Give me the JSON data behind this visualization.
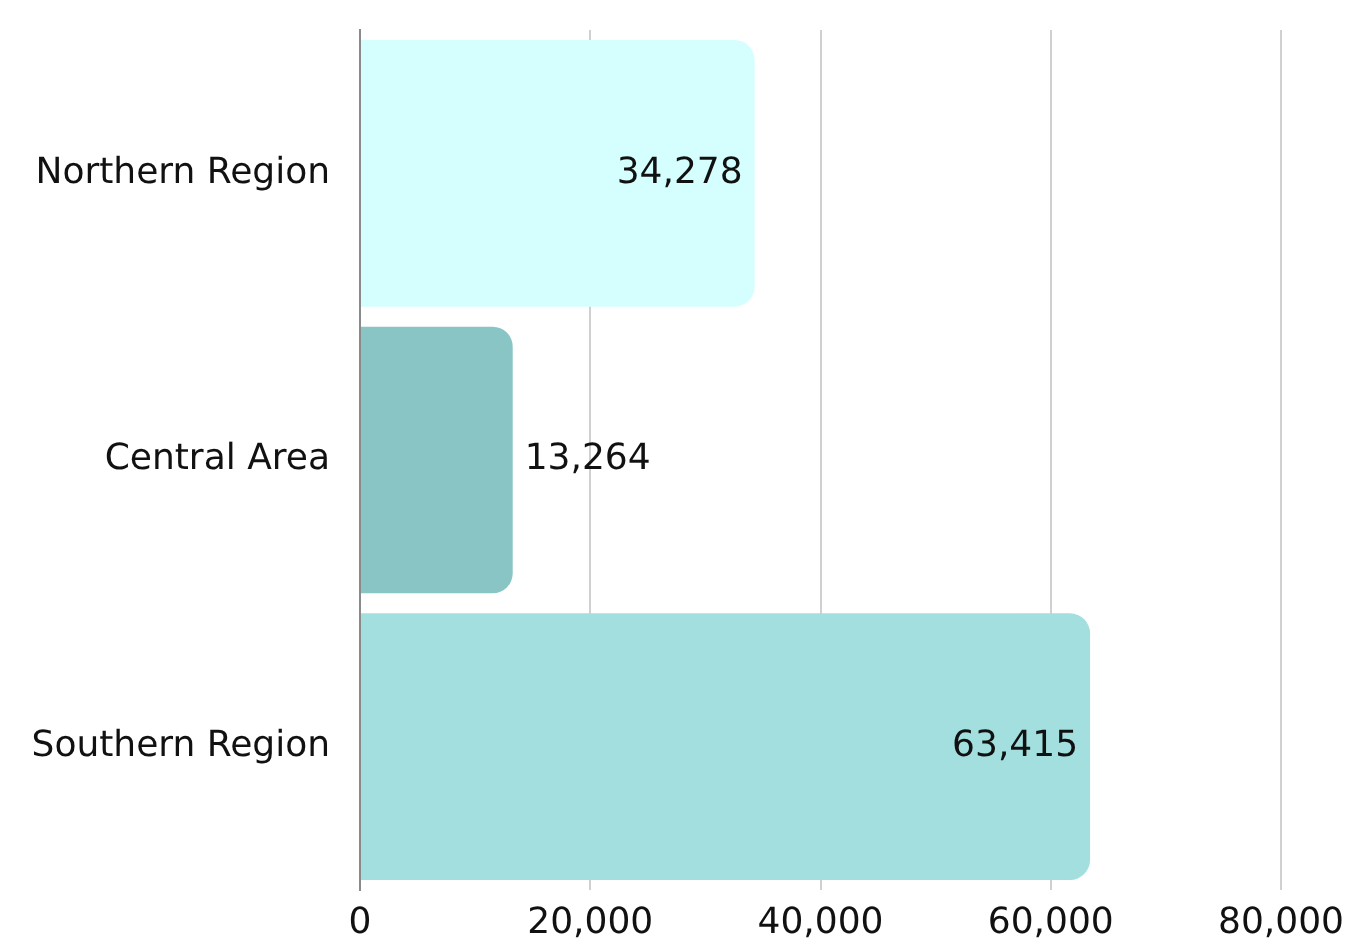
{
  "chart_data": {
    "type": "bar",
    "orientation": "horizontal",
    "categories": [
      "Northern Region",
      "Central Area",
      "Southern Region"
    ],
    "values": [
      34278,
      13264,
      63415
    ],
    "colors": [
      "#d5ffff",
      "#89c5c5",
      "#a3dfdf"
    ],
    "value_labels": [
      "34,278",
      "13,264",
      "63,415"
    ],
    "xlim": [
      0,
      80000
    ],
    "xticks": [
      0,
      {
        "value": 20000,
        "label": "20,000"
      },
      {
        "value": 40000,
        "label": "40,000"
      },
      {
        "value": 60000,
        "label": "60,000"
      },
      {
        "value": 80000,
        "label": "80,000"
      }
    ],
    "grid": "x"
  }
}
